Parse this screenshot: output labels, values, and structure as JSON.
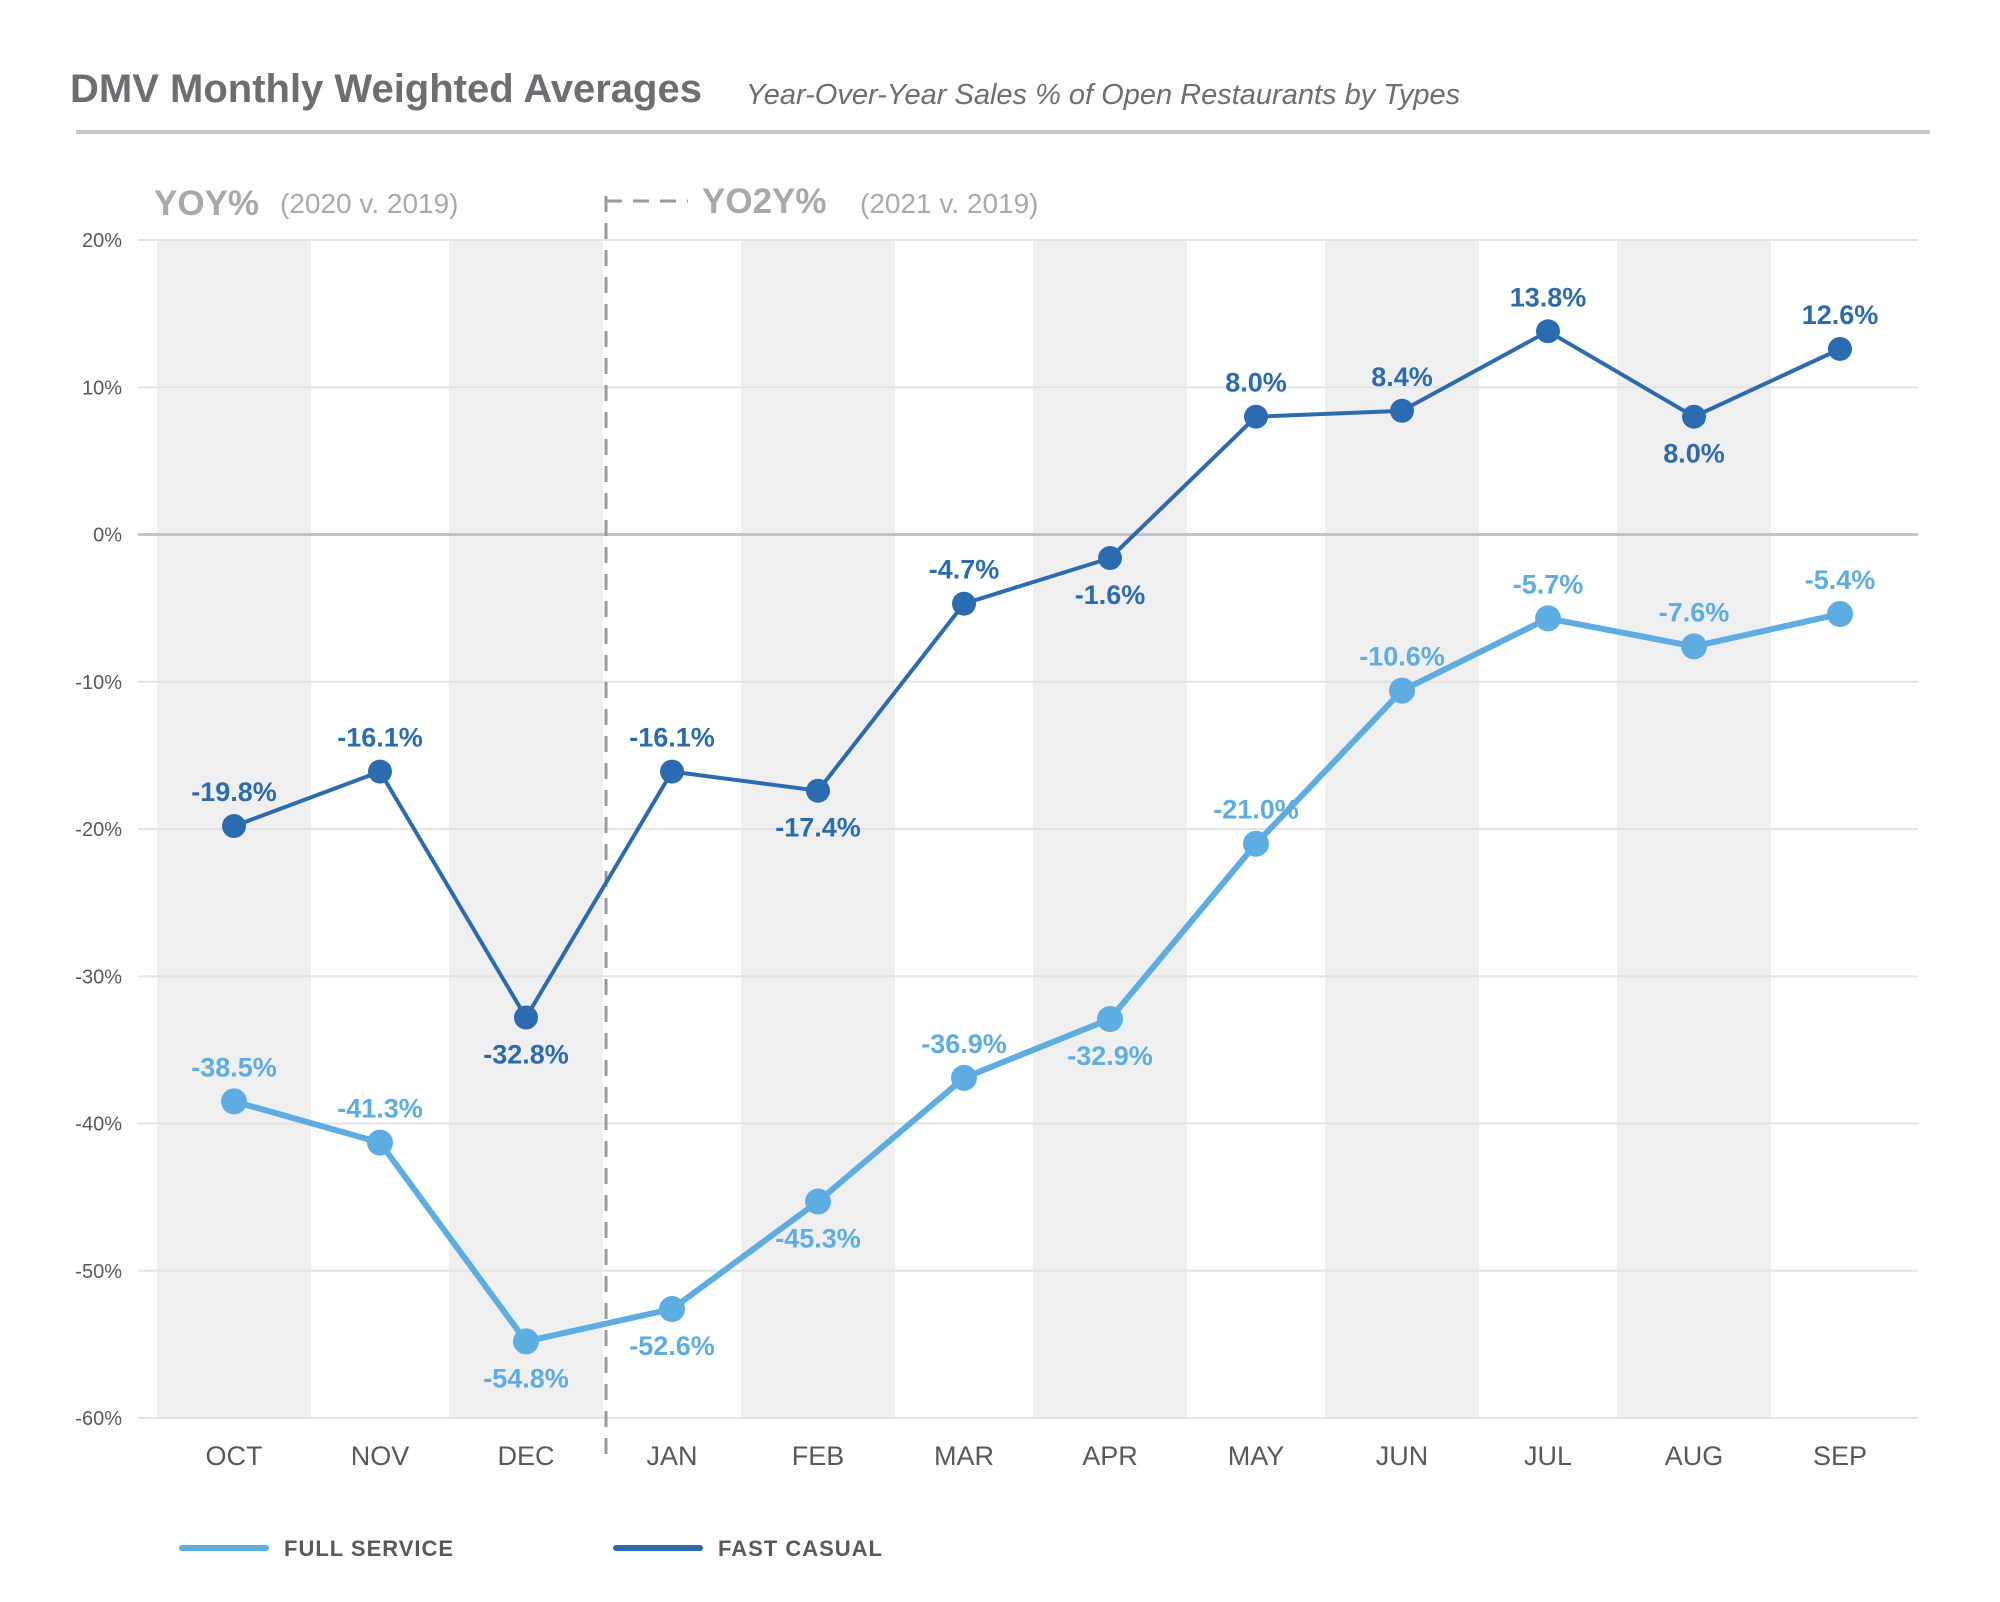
{
  "colors": {
    "full_service": "#5dade2",
    "fast_casual": "#2b6cb0",
    "band": "#efeff0",
    "grid": "#e3e3e3",
    "zero_line": "#c4c4c4",
    "divider": "#9a9a9a",
    "rule": "#c8c8c8"
  },
  "periods": {
    "first": {
      "label": "YOY%",
      "sub": "(2020 v. 2019)"
    },
    "second": {
      "label": "YO2Y%",
      "sub": "(2021 v. 2019)"
    }
  },
  "chart_data": {
    "type": "line",
    "title": "DMV Monthly Weighted Averages",
    "subtitle": "Year-Over-Year Sales % of Open Restaurants by Types",
    "categories": [
      "OCT",
      "NOV",
      "DEC",
      "JAN",
      "FEB",
      "MAR",
      "APR",
      "MAY",
      "JUN",
      "JUL",
      "AUG",
      "SEP"
    ],
    "ylim": [
      -60,
      20
    ],
    "yticks": [
      20,
      10,
      0,
      -10,
      -20,
      -30,
      -40,
      -50,
      -60
    ],
    "ytick_labels": [
      "20%",
      "10%",
      "0%",
      "-10%",
      "-20%",
      "-30%",
      "-40%",
      "-50%",
      "-60%"
    ],
    "xlabel": "",
    "ylabel": "",
    "legend_position": "bottom-left",
    "series": [
      {
        "key": "full_service",
        "name": "FULL SERVICE",
        "values": [
          -38.5,
          -41.3,
          -54.8,
          -52.6,
          -45.3,
          -36.9,
          -32.9,
          -21.0,
          -10.6,
          -5.7,
          -7.6,
          -5.4
        ],
        "labels": [
          "-38.5%",
          "-41.3%",
          "-54.8%",
          "-52.6%",
          "-45.3%",
          "-36.9%",
          "-32.9%",
          "-21.0%",
          "-10.6%",
          "-5.7%",
          "-7.6%",
          "-5.4%"
        ],
        "label_side": [
          "above",
          "above",
          "below",
          "below",
          "below",
          "above",
          "below",
          "above",
          "above",
          "above",
          "above",
          "above"
        ]
      },
      {
        "key": "fast_casual",
        "name": "FAST CASUAL",
        "values": [
          -19.8,
          -16.1,
          -32.8,
          -16.1,
          -17.4,
          -4.7,
          -1.6,
          8.0,
          8.4,
          13.8,
          8.0,
          12.6
        ],
        "labels": [
          "-19.8%",
          "-16.1%",
          "-32.8%",
          "-16.1%",
          "-17.4%",
          "-4.7%",
          "-1.6%",
          "8.0%",
          "8.4%",
          "13.8%",
          "8.0%",
          "12.6%"
        ],
        "label_side": [
          "above",
          "above",
          "below",
          "above",
          "below",
          "above",
          "below",
          "above",
          "above",
          "above",
          "below",
          "above"
        ]
      }
    ]
  }
}
